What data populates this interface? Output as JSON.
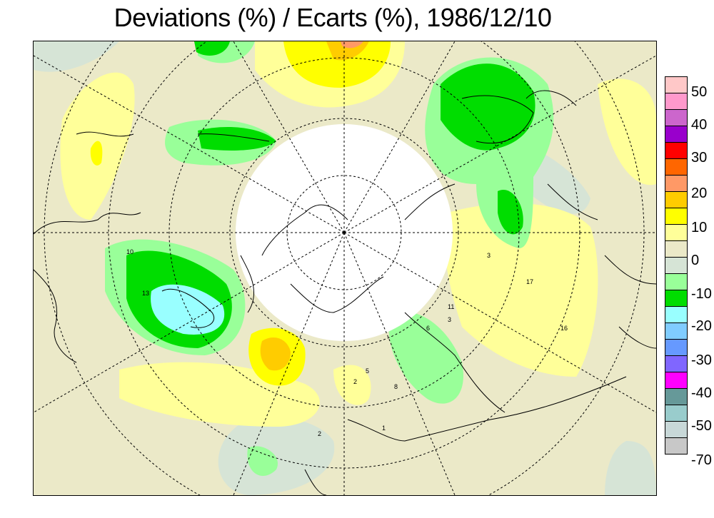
{
  "title": "Deviations (%) / Ecarts (%), 1986/12/10",
  "legend": {
    "swatches": [
      {
        "color": "#ffc8c8"
      },
      {
        "color": "#ff99cc"
      },
      {
        "color": "#cc66cc"
      },
      {
        "color": "#9900cc"
      },
      {
        "color": "#ff0000"
      },
      {
        "color": "#ff6600"
      },
      {
        "color": "#ff9966"
      },
      {
        "color": "#ffcc00"
      },
      {
        "color": "#ffff00"
      },
      {
        "color": "#ffff99"
      },
      {
        "color": "#ebe9c8"
      },
      {
        "color": "#d6e4d6"
      },
      {
        "color": "#99ff99"
      },
      {
        "color": "#00dd00"
      },
      {
        "color": "#99ffff"
      },
      {
        "color": "#80ccff"
      },
      {
        "color": "#6699ff"
      },
      {
        "color": "#8066ff"
      },
      {
        "color": "#ff00ff"
      },
      {
        "color": "#669999"
      },
      {
        "color": "#99cccc"
      },
      {
        "color": "#c8d8d8"
      },
      {
        "color": "#c8c8c8"
      }
    ],
    "labels": [
      "50",
      "40",
      "30",
      "20",
      "10",
      "0",
      "-10",
      "-20",
      "-30",
      "-40",
      "-50",
      "-70"
    ]
  },
  "map": {
    "contour_labels": [
      "10",
      "13",
      "2",
      "3",
      "5",
      "6",
      "8",
      "11",
      "16",
      "17",
      "1",
      "2",
      "3"
    ]
  },
  "colors": {
    "background": "#ebe9c8",
    "light_green": "#99ff99",
    "green": "#00dd00",
    "cyan": "#99ffff",
    "light_yellow": "#ffff99",
    "yellow": "#ffff00",
    "orange": "#ffcc00",
    "salmon": "#ff9966",
    "pale_gray_green": "#d6e4d6"
  }
}
